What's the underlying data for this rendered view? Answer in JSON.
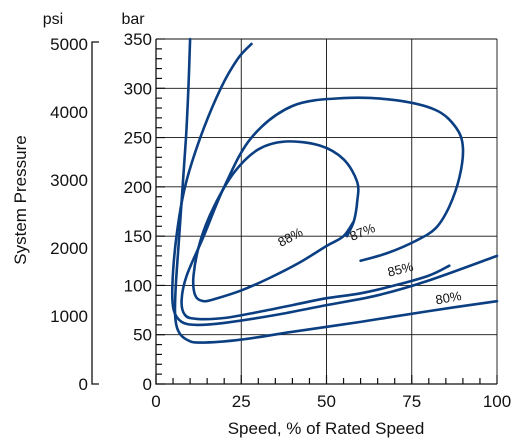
{
  "chart_data": {
    "type": "line",
    "title": "",
    "xlabel": "Speed, % of Rated Speed",
    "ylabel": "System Pressure",
    "y_units": {
      "left": "psi",
      "right": "bar"
    },
    "x_ticks": [
      0,
      25,
      50,
      75,
      100
    ],
    "y_ticks_bar": [
      0,
      50,
      100,
      150,
      200,
      250,
      300,
      350
    ],
    "y_ticks_psi": [
      0,
      1000,
      2000,
      3000,
      4000,
      5000
    ],
    "xlim": [
      0,
      100
    ],
    "ylim_bar": [
      0,
      350
    ],
    "grid": true,
    "line_color": "#0b3f82",
    "series": [
      {
        "name": "80%",
        "points": [
          [
            10,
            350
          ],
          [
            9.5,
            300
          ],
          [
            8.8,
            250
          ],
          [
            7.8,
            200
          ],
          [
            6.8,
            150
          ],
          [
            5.8,
            100
          ],
          [
            5.6,
            70
          ],
          [
            6.5,
            54
          ],
          [
            9,
            45
          ],
          [
            13,
            42
          ],
          [
            25,
            45
          ],
          [
            40,
            53
          ],
          [
            60,
            63
          ],
          [
            80,
            74
          ],
          [
            100,
            84
          ]
        ]
      },
      {
        "name": "85%",
        "points": [
          [
            28,
            345
          ],
          [
            24,
            330
          ],
          [
            19,
            300
          ],
          [
            13,
            250
          ],
          [
            8.5,
            200
          ],
          [
            6,
            150
          ],
          [
            4.8,
            100
          ],
          [
            5.2,
            75
          ],
          [
            7.5,
            63
          ],
          [
            12,
            60
          ],
          [
            20,
            62
          ],
          [
            35,
            70
          ],
          [
            50,
            80
          ],
          [
            65,
            90
          ],
          [
            80,
            105
          ],
          [
            100,
            130
          ]
        ]
      },
      {
        "name": "87%",
        "points": [
          [
            86,
            120
          ],
          [
            80,
            110
          ],
          [
            70,
            100
          ],
          [
            60,
            92
          ],
          [
            50,
            87
          ],
          [
            40,
            80
          ],
          [
            30,
            73
          ],
          [
            20,
            67
          ],
          [
            12,
            66
          ],
          [
            8.5,
            70
          ],
          [
            7.5,
            85
          ],
          [
            9,
            110
          ],
          [
            14,
            150
          ],
          [
            20,
            200
          ],
          [
            28,
            250
          ],
          [
            40,
            282
          ],
          [
            55,
            290
          ],
          [
            70,
            288
          ],
          [
            82,
            278
          ],
          [
            88,
            260
          ],
          [
            90,
            240
          ],
          [
            89,
            210
          ],
          [
            86,
            180
          ],
          [
            82,
            158
          ],
          [
            76,
            145
          ],
          [
            68,
            133
          ],
          [
            60,
            125
          ]
        ]
      },
      {
        "name": "88%",
        "points": [
          [
            58,
            165
          ],
          [
            55,
            150
          ],
          [
            50,
            140
          ],
          [
            42,
            123
          ],
          [
            33,
            107
          ],
          [
            25,
            95
          ],
          [
            18,
            87
          ],
          [
            14,
            84
          ],
          [
            11.5,
            90
          ],
          [
            11,
            110
          ],
          [
            13,
            145
          ],
          [
            17,
            180
          ],
          [
            23,
            215
          ],
          [
            30,
            238
          ],
          [
            38,
            246
          ],
          [
            48,
            242
          ],
          [
            55,
            228
          ],
          [
            59,
            205
          ],
          [
            59,
            185
          ],
          [
            58,
            165
          ],
          [
            56,
            150
          ]
        ]
      }
    ],
    "annotations": [
      {
        "text": "88%",
        "x": 40,
        "y": 145
      },
      {
        "text": "87%",
        "x": 61,
        "y": 150
      },
      {
        "text": "85%",
        "x": 72,
        "y": 112
      },
      {
        "text": "80%",
        "x": 86,
        "y": 83
      }
    ]
  }
}
